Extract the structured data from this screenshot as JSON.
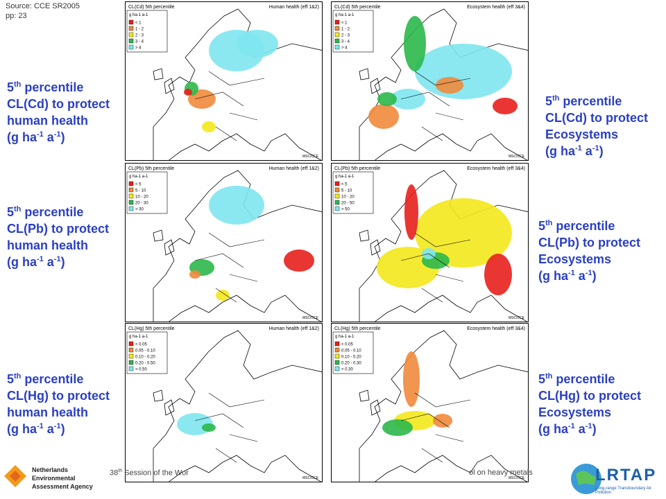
{
  "source": [
    "Source: CCE SR2005",
    "pp: 23"
  ],
  "labels_left": [
    {
      "number": "5",
      "ordinal": "th",
      "word": " percentile",
      "line2": "CL(Cd) to protect",
      "line3": "human health",
      "unit": [
        "(g ha",
        "-1",
        " a",
        "-1",
        ")"
      ]
    },
    {
      "number": "5",
      "ordinal": "th",
      "word": " percentile",
      "line2": "CL(Pb) to protect",
      "line3": "human health",
      "unit": [
        "(g ha",
        "-1",
        " a",
        "-1",
        ")"
      ]
    },
    {
      "number": "5",
      "ordinal": "th",
      "word": " percentile",
      "line2": "CL(Hg) to protect",
      "line3": "human health",
      "unit": [
        "(g ha",
        "-1",
        " a",
        "-1",
        ")"
      ]
    }
  ],
  "labels_right": [
    {
      "number": "5",
      "ordinal": "th",
      "word": " percentile",
      "line2": "CL(Cd) to protect",
      "line3": "Ecosystems",
      "unit": [
        "(g ha",
        "-1",
        " a",
        "-1",
        ")"
      ]
    },
    {
      "number": "5",
      "ordinal": "th",
      "word": " percentile",
      "line2": "CL(Pb) to protect",
      "line3": "Ecosystems",
      "unit": [
        "(g ha",
        "-1",
        " a",
        "-1",
        ")"
      ]
    },
    {
      "number": "5",
      "ordinal": "th",
      "word": " percentile",
      "line2": "CL(Hg) to protect",
      "line3": "Ecosystems",
      "unit": [
        "(g ha",
        "-1",
        " a",
        "-1",
        ")"
      ]
    }
  ],
  "maps": [
    {
      "title": "CL(Cd) 5th percentile",
      "effect": "Human health (eff 1&2)",
      "unit": "g ha-1 a-1",
      "credit": "MSC/CCE",
      "legend": [
        {
          "label": "< 1",
          "color": "#e8201c"
        },
        {
          "label": "1 - 2",
          "color": "#f08a3c"
        },
        {
          "label": "2 - 3",
          "color": "#f4e81c"
        },
        {
          "label": "3 - 4",
          "color": "#2bb84a"
        },
        {
          "label": "> 4",
          "color": "#7ee6ee"
        }
      ]
    },
    {
      "title": "CL(Cd) 5th percentile",
      "effect": "Ecosystem health (eff 3&4)",
      "unit": "g ha-1 a-1",
      "credit": "MSC/CCE",
      "legend": [
        {
          "label": "< 1",
          "color": "#e8201c"
        },
        {
          "label": "1 - 2",
          "color": "#f08a3c"
        },
        {
          "label": "2 - 3",
          "color": "#f4e81c"
        },
        {
          "label": "3 - 4",
          "color": "#2bb84a"
        },
        {
          "label": "> 4",
          "color": "#7ee6ee"
        }
      ]
    },
    {
      "title": "CL(Pb) 5th percentile",
      "effect": "Human health (eff 1&2)",
      "unit": "g ha-1 a-1",
      "credit": "MSC/CCE",
      "legend": [
        {
          "label": "< 5",
          "color": "#e8201c"
        },
        {
          "label": "5 - 10",
          "color": "#f08a3c"
        },
        {
          "label": "10 - 20",
          "color": "#f4e81c"
        },
        {
          "label": "20 - 30",
          "color": "#2bb84a"
        },
        {
          "label": "> 30",
          "color": "#7ee6ee"
        }
      ]
    },
    {
      "title": "CL(Pb) 5th percentile",
      "effect": "Ecosystem health (eff 3&4)",
      "unit": "g ha-1 a-1",
      "credit": "MSC/CCE",
      "legend": [
        {
          "label": "< 5",
          "color": "#e8201c"
        },
        {
          "label": "5 - 10",
          "color": "#f08a3c"
        },
        {
          "label": "10 - 20",
          "color": "#f4e81c"
        },
        {
          "label": "20 - 50",
          "color": "#2bb84a"
        },
        {
          "label": "> 50",
          "color": "#7ee6ee"
        }
      ]
    },
    {
      "title": "CL(Hg) 5th percentile",
      "effect": "Human health (eff 1&2)",
      "unit": "g ha-1 a-1",
      "credit": "MSC/CCE",
      "legend": [
        {
          "label": "< 0.05",
          "color": "#e8201c"
        },
        {
          "label": "0.05 - 0.10",
          "color": "#f08a3c"
        },
        {
          "label": "0.10 - 0.20",
          "color": "#f4e81c"
        },
        {
          "label": "0.20 - 0.50",
          "color": "#2bb84a"
        },
        {
          "label": "> 0.50",
          "color": "#7ee6ee"
        }
      ]
    },
    {
      "title": "CL(Hg) 5th percentile",
      "effect": "Ecosystem health (eff 3&4)",
      "unit": "g ha-1 a-1",
      "credit": "MSC/CCE",
      "legend": [
        {
          "label": "< 0.05",
          "color": "#e8201c"
        },
        {
          "label": "0.05 - 0.10",
          "color": "#f08a3c"
        },
        {
          "label": "0.10 - 0.20",
          "color": "#f4e81c"
        },
        {
          "label": "0.20 - 0.30",
          "color": "#2bb84a"
        },
        {
          "label": "> 0.30",
          "color": "#7ee6ee"
        }
      ]
    }
  ],
  "footer": {
    "number": "38",
    "ordinal": "th",
    "left_text": " Session of the Wor",
    "right_text": "ol on heavy metals"
  },
  "logo_left": [
    "Netherlands Environmental",
    "Assessment Agency"
  ],
  "logo_right": {
    "name": "LRTAP",
    "tagline": "Long-range Transboundary Air Pollution"
  }
}
